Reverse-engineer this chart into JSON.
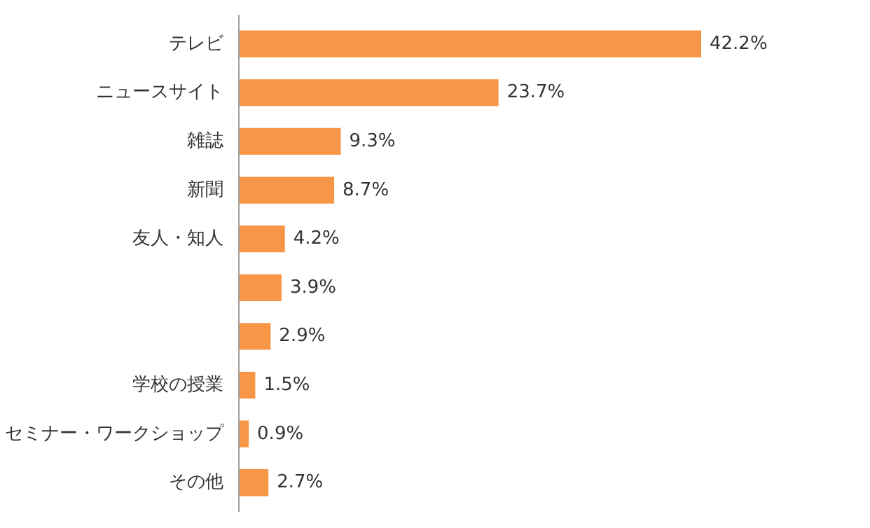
{
  "chart_data": {
    "type": "bar",
    "orientation": "horizontal",
    "categories": [
      "テレビ",
      "ニュースサイト",
      "雑誌",
      "新聞",
      "友人・知人",
      null,
      null,
      "学校の授業",
      "セミナー・ワークショップ",
      "その他"
    ],
    "values": [
      42.2,
      23.7,
      9.3,
      8.7,
      4.2,
      3.9,
      2.9,
      1.5,
      0.9,
      2.7
    ],
    "value_labels": [
      "42.2%",
      "23.7%",
      "9.3%",
      "8.7%",
      "4.2%",
      "3.9%",
      "2.9%",
      "1.5%",
      "0.9%",
      "2.7%"
    ],
    "color": "#f79646",
    "grid": false
  }
}
